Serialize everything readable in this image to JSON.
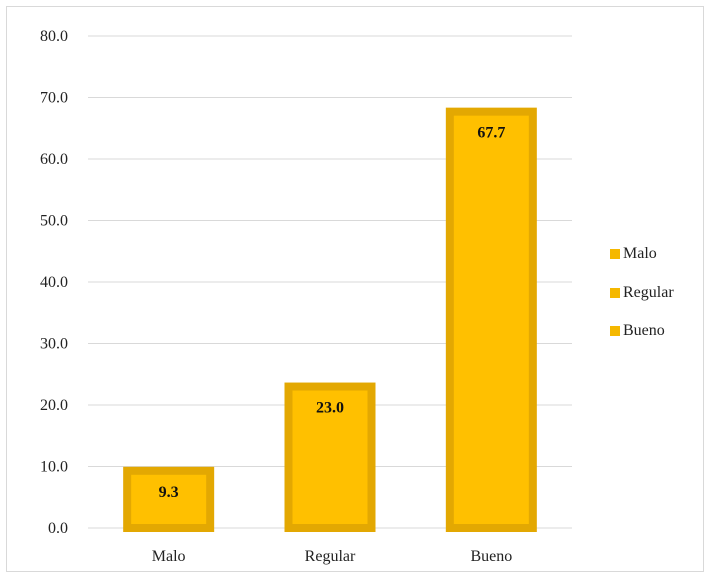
{
  "chart_data": {
    "type": "bar",
    "categories": [
      "Malo",
      "Regular",
      "Bueno"
    ],
    "values": [
      9.3,
      23.0,
      67.7
    ],
    "value_labels": [
      "9.3",
      "23.0",
      "67.7"
    ],
    "ylim": [
      0,
      80
    ],
    "yticks": [
      "0.0",
      "10.0",
      "20.0",
      "30.0",
      "40.0",
      "50.0",
      "60.0",
      "70.0",
      "80.0"
    ],
    "grid": true,
    "legend_position": "right",
    "legend": [
      "Malo",
      "Regular",
      "Bueno"
    ],
    "colors": {
      "bar_fill": "#ffc000",
      "bar_border": "#e3a802",
      "swatch": "#f5b800",
      "grid": "#d9d9d9"
    }
  }
}
